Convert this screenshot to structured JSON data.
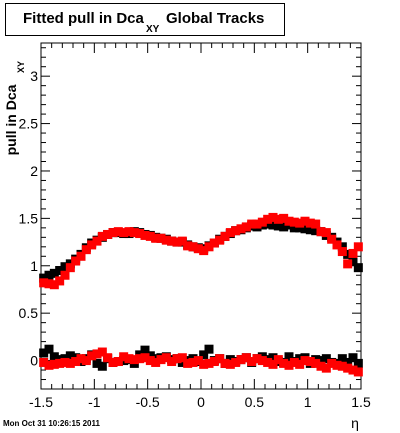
{
  "title": {
    "main": "Fitted pull in Dca",
    "sub": "XY",
    "rest": "Global Tracks"
  },
  "footer": "Mon Oct 31 10:26:15 2011",
  "chart_data": {
    "type": "scatter",
    "xlabel": "η",
    "ylabel_main": "pull in Dca",
    "ylabel_sub": "XY",
    "xlim": [
      -1.5,
      1.5
    ],
    "ylim": [
      -0.3,
      3.35
    ],
    "xticks": [
      -1.5,
      -1,
      -0.5,
      0,
      0.5,
      1,
      1.5
    ],
    "xtick_labels": [
      "-1.5",
      "-1",
      "-0.5",
      "0",
      "0.5",
      "1",
      "1.5"
    ],
    "yticks": [
      0,
      0.5,
      1,
      1.5,
      2,
      2.5,
      3
    ],
    "ytick_labels": [
      "0",
      "0.5",
      "1",
      "1.5",
      "2",
      "2.5",
      "3"
    ],
    "series": [
      {
        "color": "#000000",
        "x": [
          -1.475,
          -1.425,
          -1.375,
          -1.325,
          -1.275,
          -1.225,
          -1.175,
          -1.125,
          -1.075,
          -1.025,
          -0.975,
          -0.925,
          -0.875,
          -0.825,
          -0.775,
          -0.725,
          -0.675,
          -0.625,
          -0.575,
          -0.525,
          -0.475,
          -0.425,
          -0.375,
          -0.325,
          -0.275,
          -0.225,
          -0.175,
          -0.125,
          -0.075,
          -0.025,
          0.025,
          0.075,
          0.125,
          0.175,
          0.225,
          0.275,
          0.325,
          0.375,
          0.425,
          0.475,
          0.525,
          0.575,
          0.625,
          0.675,
          0.725,
          0.775,
          0.825,
          0.875,
          0.925,
          0.975,
          1.025,
          1.075,
          1.125,
          1.175,
          1.225,
          1.275,
          1.325,
          1.375,
          1.425,
          1.475
        ],
        "y": [
          0.87,
          0.9,
          0.92,
          0.95,
          0.99,
          1.02,
          1.07,
          1.12,
          1.19,
          1.24,
          1.27,
          1.3,
          1.33,
          1.35,
          1.35,
          1.34,
          1.34,
          1.36,
          1.35,
          1.33,
          1.32,
          1.3,
          1.29,
          1.28,
          1.26,
          1.25,
          1.25,
          1.22,
          1.2,
          1.19,
          1.18,
          1.21,
          1.24,
          1.28,
          1.31,
          1.34,
          1.37,
          1.38,
          1.4,
          1.42,
          1.41,
          1.43,
          1.44,
          1.43,
          1.42,
          1.41,
          1.43,
          1.4,
          1.4,
          1.39,
          1.38,
          1.37,
          1.36,
          1.32,
          1.3,
          1.25,
          1.2,
          1.12,
          1.05,
          0.98
        ]
      },
      {
        "color": "#ff0000",
        "x": [
          -1.475,
          -1.425,
          -1.375,
          -1.325,
          -1.275,
          -1.225,
          -1.175,
          -1.125,
          -1.075,
          -1.025,
          -0.975,
          -0.925,
          -0.875,
          -0.825,
          -0.775,
          -0.725,
          -0.675,
          -0.625,
          -0.575,
          -0.525,
          -0.475,
          -0.425,
          -0.375,
          -0.325,
          -0.275,
          -0.225,
          -0.175,
          -0.125,
          -0.075,
          -0.025,
          0.025,
          0.075,
          0.125,
          0.175,
          0.225,
          0.275,
          0.325,
          0.375,
          0.425,
          0.475,
          0.525,
          0.575,
          0.625,
          0.675,
          0.725,
          0.775,
          0.825,
          0.875,
          0.925,
          0.975,
          1.025,
          1.075,
          1.125,
          1.175,
          1.225,
          1.275,
          1.325,
          1.375,
          1.425,
          1.475
        ],
        "y": [
          0.82,
          0.81,
          0.8,
          0.84,
          0.9,
          0.98,
          1.05,
          1.1,
          1.17,
          1.22,
          1.26,
          1.31,
          1.33,
          1.35,
          1.36,
          1.35,
          1.36,
          1.35,
          1.34,
          1.32,
          1.31,
          1.29,
          1.29,
          1.27,
          1.26,
          1.25,
          1.26,
          1.21,
          1.2,
          1.18,
          1.16,
          1.2,
          1.24,
          1.27,
          1.31,
          1.35,
          1.37,
          1.39,
          1.41,
          1.44,
          1.44,
          1.46,
          1.49,
          1.51,
          1.49,
          1.5,
          1.47,
          1.46,
          1.45,
          1.47,
          1.45,
          1.44,
          1.36,
          1.35,
          1.28,
          1.22,
          1.15,
          1.02,
          1.13,
          1.2
        ]
      },
      {
        "color": "#000000",
        "x": [
          -1.475,
          -1.425,
          -1.375,
          -1.325,
          -1.275,
          -1.225,
          -1.175,
          -1.125,
          -1.075,
          -1.025,
          -0.975,
          -0.925,
          -0.875,
          -0.825,
          -0.775,
          -0.725,
          -0.675,
          -0.625,
          -0.575,
          -0.525,
          -0.475,
          -0.425,
          -0.375,
          -0.325,
          -0.275,
          -0.225,
          -0.175,
          -0.125,
          -0.075,
          -0.025,
          0.025,
          0.075,
          0.125,
          0.175,
          0.225,
          0.275,
          0.325,
          0.375,
          0.425,
          0.475,
          0.525,
          0.575,
          0.625,
          0.675,
          0.725,
          0.775,
          0.825,
          0.875,
          0.925,
          0.975,
          1.025,
          1.075,
          1.125,
          1.175,
          1.225,
          1.275,
          1.325,
          1.375,
          1.425,
          1.475
        ],
        "y": [
          0.08,
          0.12,
          0.04,
          0.01,
          0.02,
          0.05,
          0.03,
          -0.01,
          0.02,
          0.06,
          -0.03,
          -0.06,
          0.02,
          -0.02,
          -0.01,
          0.0,
          0.01,
          -0.03,
          0.06,
          0.11,
          0.05,
          0.02,
          0.03,
          0.04,
          0.01,
          0.02,
          -0.02,
          0.0,
          0.02,
          -0.01,
          0.06,
          0.12,
          0.0,
          0.02,
          -0.03,
          0.01,
          -0.01,
          0.01,
          0.03,
          -0.02,
          0.02,
          0.04,
          0.01,
          0.03,
          -0.01,
          -0.02,
          0.04,
          -0.01,
          0.02,
          0.03,
          -0.03,
          0.01,
          0.0,
          0.02,
          -0.02,
          -0.03,
          0.02,
          -0.02,
          0.03,
          -0.03
        ]
      },
      {
        "color": "#ff0000",
        "x": [
          -1.475,
          -1.425,
          -1.375,
          -1.325,
          -1.275,
          -1.225,
          -1.175,
          -1.125,
          -1.075,
          -1.025,
          -0.975,
          -0.925,
          -0.875,
          -0.825,
          -0.775,
          -0.725,
          -0.675,
          -0.625,
          -0.575,
          -0.525,
          -0.475,
          -0.425,
          -0.375,
          -0.325,
          -0.275,
          -0.225,
          -0.175,
          -0.125,
          -0.075,
          -0.025,
          0.025,
          0.075,
          0.125,
          0.175,
          0.225,
          0.275,
          0.325,
          0.375,
          0.425,
          0.475,
          0.525,
          0.575,
          0.625,
          0.675,
          0.725,
          0.775,
          0.825,
          0.875,
          0.925,
          0.975,
          1.025,
          1.075,
          1.125,
          1.175,
          1.225,
          1.275,
          1.325,
          1.375,
          1.425,
          1.475
        ],
        "y": [
          -0.02,
          -0.05,
          -0.04,
          -0.03,
          -0.02,
          -0.03,
          -0.01,
          0.02,
          0.0,
          0.05,
          0.07,
          0.09,
          0.03,
          -0.02,
          -0.01,
          0.04,
          0.02,
          0.01,
          0.02,
          0.03,
          0.0,
          -0.02,
          0.01,
          0.03,
          -0.01,
          0.02,
          0.03,
          -0.03,
          -0.02,
          0.0,
          -0.04,
          -0.03,
          -0.01,
          0.02,
          -0.03,
          -0.04,
          -0.02,
          0.01,
          0.03,
          -0.01,
          0.02,
          0.0,
          -0.02,
          -0.04,
          0.01,
          -0.03,
          -0.05,
          -0.02,
          -0.04,
          0.0,
          -0.01,
          -0.03,
          -0.06,
          -0.08,
          -0.03,
          -0.05,
          -0.06,
          -0.08,
          -0.1,
          -0.12
        ]
      }
    ]
  }
}
